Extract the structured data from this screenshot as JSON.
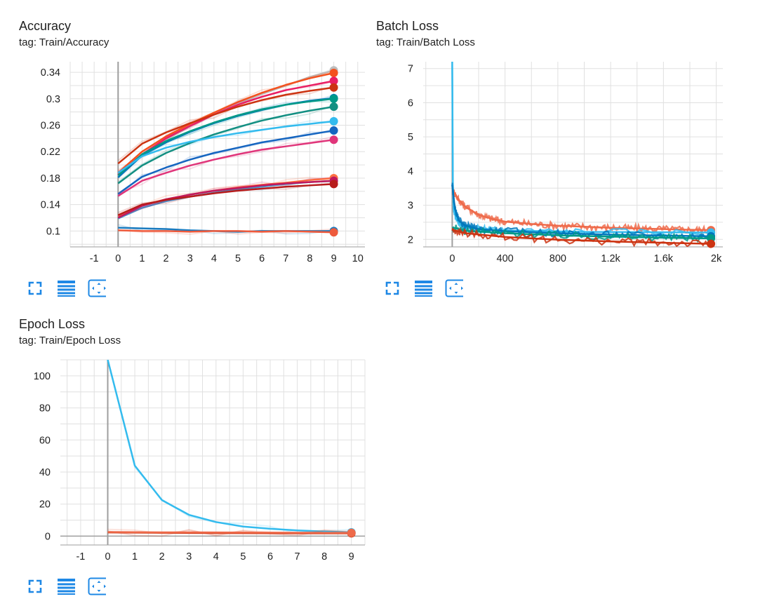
{
  "cards": [
    {
      "title": "Accuracy",
      "tag": "tag: Train/Accuracy",
      "chart_data": {
        "type": "line",
        "title": "Accuracy",
        "xlim": [
          -2,
          10.3
        ],
        "ylim": [
          0.076,
          0.356
        ],
        "xticks": [
          -1,
          0,
          1,
          2,
          3,
          4,
          5,
          6,
          7,
          8,
          9,
          10
        ],
        "xtick_labels": [
          "-1",
          "0",
          "1",
          "2",
          "3",
          "4",
          "5",
          "6",
          "7",
          "8",
          "9",
          "10"
        ],
        "yticks": [
          0.1,
          0.14,
          0.18,
          0.22,
          0.26,
          0.3,
          0.34
        ],
        "ytick_labels": [
          "0.1",
          "0.14",
          "0.18",
          "0.22",
          "0.26",
          "0.3",
          "0.34"
        ],
        "grid": true,
        "series": [
          {
            "color": "#bdbdbd",
            "values": [
              0.183,
              0.214,
              0.238,
              0.258,
              0.276,
              0.293,
              0.307,
              0.32,
              0.333,
              0.343
            ]
          },
          {
            "color": "#f4511e",
            "values": [
              0.188,
              0.22,
              0.243,
              0.262,
              0.279,
              0.295,
              0.309,
              0.321,
              0.331,
              0.339
            ]
          },
          {
            "color": "#e91e63",
            "values": [
              0.185,
              0.216,
              0.24,
              0.259,
              0.276,
              0.291,
              0.303,
              0.313,
              0.32,
              0.327
            ]
          },
          {
            "color": "#cc3311",
            "values": [
              0.202,
              0.232,
              0.249,
              0.263,
              0.276,
              0.288,
              0.298,
              0.306,
              0.312,
              0.317
            ]
          },
          {
            "color": "#0077bb",
            "values": [
              0.181,
              0.214,
              0.234,
              0.25,
              0.263,
              0.274,
              0.283,
              0.291,
              0.297,
              0.301
            ]
          },
          {
            "color": "#009988",
            "values": [
              0.184,
              0.216,
              0.236,
              0.251,
              0.264,
              0.275,
              0.284,
              0.291,
              0.296,
              0.3
            ]
          },
          {
            "color": "#138f82",
            "values": [
              0.172,
              0.199,
              0.218,
              0.233,
              0.246,
              0.257,
              0.267,
              0.275,
              0.282,
              0.288
            ]
          },
          {
            "color": "#33bbee",
            "values": [
              0.188,
              0.213,
              0.226,
              0.235,
              0.242,
              0.248,
              0.253,
              0.258,
              0.262,
              0.266
            ]
          },
          {
            "color": "#1565c0",
            "values": [
              0.156,
              0.182,
              0.196,
              0.208,
              0.218,
              0.226,
              0.234,
              0.24,
              0.246,
              0.252
            ]
          },
          {
            "color": "#e0357a",
            "values": [
              0.153,
              0.176,
              0.188,
              0.199,
              0.208,
              0.216,
              0.223,
              0.228,
              0.233,
              0.238
            ]
          },
          {
            "color": "#ff7043",
            "values": [
              0.123,
              0.139,
              0.148,
              0.155,
              0.161,
              0.166,
              0.17,
              0.173,
              0.177,
              0.18
            ]
          },
          {
            "color": "#4a90c8",
            "values": [
              0.119,
              0.135,
              0.145,
              0.152,
              0.158,
              0.163,
              0.167,
              0.171,
              0.174,
              0.176
            ]
          },
          {
            "color": "#c2185b",
            "values": [
              0.12,
              0.138,
              0.148,
              0.155,
              0.161,
              0.165,
              0.169,
              0.172,
              0.174,
              0.176
            ]
          },
          {
            "color": "#b71c1c",
            "values": [
              0.124,
              0.14,
              0.147,
              0.152,
              0.157,
              0.161,
              0.164,
              0.167,
              0.169,
              0.171
            ]
          },
          {
            "color": "#1a7bbf",
            "values": [
              0.105,
              0.104,
              0.103,
              0.101,
              0.1,
              0.099,
              0.1,
              0.1,
              0.1,
              0.1
            ]
          },
          {
            "color": "#ee5a3c",
            "values": [
              0.101,
              0.1,
              0.1,
              0.099,
              0.1,
              0.1,
              0.099,
              0.1,
              0.099,
              0.098
            ]
          }
        ]
      }
    },
    {
      "title": "Batch Loss",
      "tag": "tag: Train/Batch Loss",
      "chart_data": {
        "type": "line",
        "title": "Batch Loss",
        "xlim": [
          -220,
          2050
        ],
        "ylim": [
          1.78,
          7.2
        ],
        "xticks": [
          0,
          400,
          800,
          1200,
          1600,
          2000
        ],
        "xtick_labels": [
          "0",
          "400",
          "800",
          "1.2k",
          "1.6k",
          "2k"
        ],
        "yticks": [
          2,
          3,
          4,
          5,
          6,
          7
        ],
        "ytick_labels": [
          "2",
          "3",
          "4",
          "5",
          "6",
          "7"
        ],
        "grid": true,
        "series": [
          {
            "color": "#ee6a4a",
            "x": [
              10,
              50,
              100,
              200,
              300,
              400,
              600,
              800,
              1000,
              1200,
              1400,
              1600,
              1800,
              1960
            ],
            "values": [
              3.4,
              3.15,
              2.95,
              2.72,
              2.6,
              2.52,
              2.45,
              2.4,
              2.37,
              2.34,
              2.32,
              2.3,
              2.28,
              2.27
            ]
          },
          {
            "color": "#33bbee",
            "x": [
              0,
              5,
              10,
              30,
              60,
              100,
              200,
              300,
              400,
              1000,
              1960
            ],
            "values": [
              7.2,
              3.6,
              2.9,
              2.6,
              2.45,
              2.35,
              2.3,
              2.28,
              2.26,
              2.22,
              2.2
            ]
          },
          {
            "color": "#0077bb",
            "x": [
              0,
              20,
              50,
              100,
              200,
              400,
              800,
              1200,
              1600,
              1960
            ],
            "values": [
              3.6,
              2.9,
              2.55,
              2.4,
              2.3,
              2.24,
              2.18,
              2.14,
              2.11,
              2.09
            ]
          },
          {
            "color": "#009988",
            "x": [
              0,
              100,
              400,
              800,
              1200,
              1600,
              1960
            ],
            "values": [
              2.35,
              2.25,
              2.18,
              2.12,
              2.08,
              2.05,
              2.03
            ]
          },
          {
            "color": "#cc3311",
            "x": [
              0,
              100,
              400,
              800,
              1200,
              1600,
              1960
            ],
            "values": [
              2.28,
              2.18,
              2.07,
              1.99,
              1.94,
              1.9,
              1.87
            ]
          }
        ]
      }
    },
    {
      "title": "Epoch Loss",
      "tag": "tag: Train/Epoch Loss",
      "chart_data": {
        "type": "line",
        "title": "Epoch Loss",
        "xlim": [
          -1.75,
          9.5
        ],
        "ylim": [
          -5.5,
          110
        ],
        "xticks": [
          -1,
          0,
          1,
          2,
          3,
          4,
          5,
          6,
          7,
          8,
          9
        ],
        "xtick_labels": [
          "-1",
          "0",
          "1",
          "2",
          "3",
          "4",
          "5",
          "6",
          "7",
          "8",
          "9"
        ],
        "yticks": [
          0,
          20,
          40,
          60,
          80,
          100
        ],
        "ytick_labels": [
          "0",
          "20",
          "40",
          "60",
          "80",
          "100"
        ],
        "grid": true,
        "series": [
          {
            "color": "#33bbee",
            "values": [
              110,
              44,
              22.5,
              13.3,
              8.8,
              6.0,
              4.6,
              3.6,
              2.9,
              2.4
            ]
          },
          {
            "color": "#cc3311",
            "values": [
              2.3,
              2.2,
              2.1,
              2.0,
              1.95,
              1.9,
              1.85,
              1.8,
              1.78,
              1.75
            ]
          },
          {
            "color": "#ee6a4a",
            "values": [
              2.6,
              2.5,
              2.4,
              2.35,
              2.3,
              2.25,
              2.2,
              2.15,
              2.1,
              2.05
            ]
          }
        ]
      }
    }
  ],
  "toolbar": {
    "icons": [
      "fullscreen-icon",
      "list-icon",
      "fit-domain-icon"
    ],
    "accent": "#1e88e5"
  }
}
